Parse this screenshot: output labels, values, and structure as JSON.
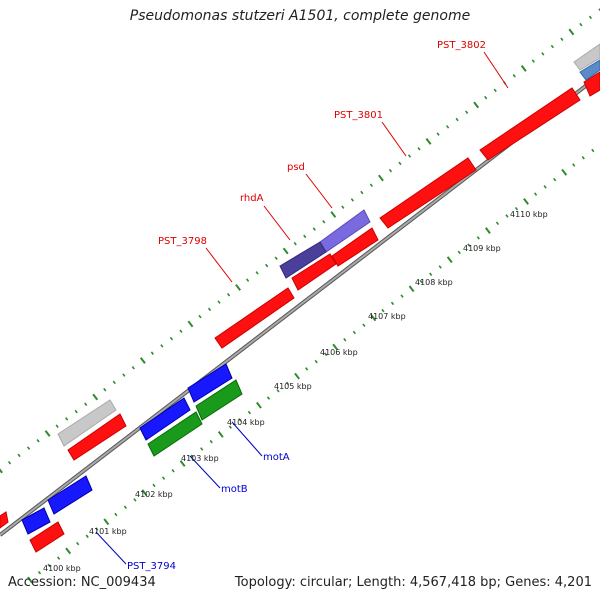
{
  "title": "Pseudomonas stutzeri A1501, complete genome",
  "footer": {
    "accession": "Accession: NC_009434",
    "topology": "Topology: circular; Length: 4,567,418 bp; Genes: 4,201"
  },
  "scale_labels": [
    "4100 kbp",
    "4101 kbp",
    "4102 kbp",
    "4103 kbp",
    "4104 kbp",
    "4105 kbp",
    "4106 kbp",
    "4107 kbp",
    "4108 kbp",
    "4109 kbp",
    "4110 kbp"
  ],
  "gene_labels": [
    {
      "name": "PST_3802",
      "color": "#e00000"
    },
    {
      "name": "PST_3801",
      "color": "#e00000"
    },
    {
      "name": "psd",
      "color": "#e00000"
    },
    {
      "name": "rhdA",
      "color": "#e00000"
    },
    {
      "name": "PST_3798",
      "color": "#e00000"
    },
    {
      "name": "motA",
      "color": "#0000cc"
    },
    {
      "name": "motB",
      "color": "#0000cc"
    },
    {
      "name": "PST_3794",
      "color": "#0000cc"
    }
  ],
  "colors": {
    "forward_cds": "#ff1010",
    "reverse_cds": "#1818ff",
    "rna": "#1a9a1a",
    "other": "#c8c8c8",
    "psd_gene": "#7a6ae0",
    "rhdA_gene": "#4a3f9a",
    "backbone": "#808080",
    "tick": "#2e8b2e"
  }
}
